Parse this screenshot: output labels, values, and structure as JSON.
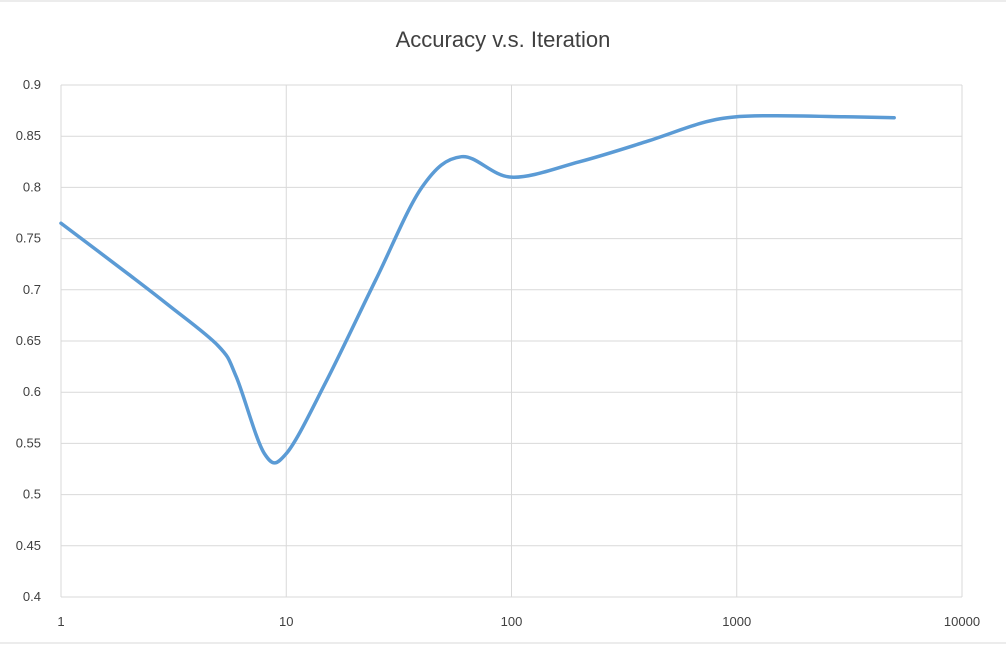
{
  "chart_data": {
    "type": "line",
    "title": "Accuracy v.s. Iteration",
    "x_scale": "log",
    "xlim": [
      1,
      10000
    ],
    "ylim": [
      0.4,
      0.9
    ],
    "x_ticks": [
      "1",
      "10",
      "100",
      "1000",
      "10000"
    ],
    "y_ticks": [
      "0.9",
      "0.85",
      "0.8",
      "0.75",
      "0.7",
      "0.65",
      "0.6",
      "0.55",
      "0.5",
      "0.45",
      "0.4"
    ],
    "grid": true,
    "legend": "none",
    "line_color": "#5b9bd5",
    "series": [
      {
        "x": [
          1,
          2,
          3,
          5,
          6,
          8,
          10,
          15,
          25,
          40,
          60,
          100,
          200,
          400,
          700,
          1000,
          1500,
          3000,
          5000
        ],
        "y": [
          0.765,
          0.715,
          0.685,
          0.645,
          0.615,
          0.54,
          0.54,
          0.61,
          0.71,
          0.8,
          0.83,
          0.81,
          0.825,
          0.845,
          0.863,
          0.869,
          0.87,
          0.869,
          0.868
        ]
      }
    ]
  }
}
